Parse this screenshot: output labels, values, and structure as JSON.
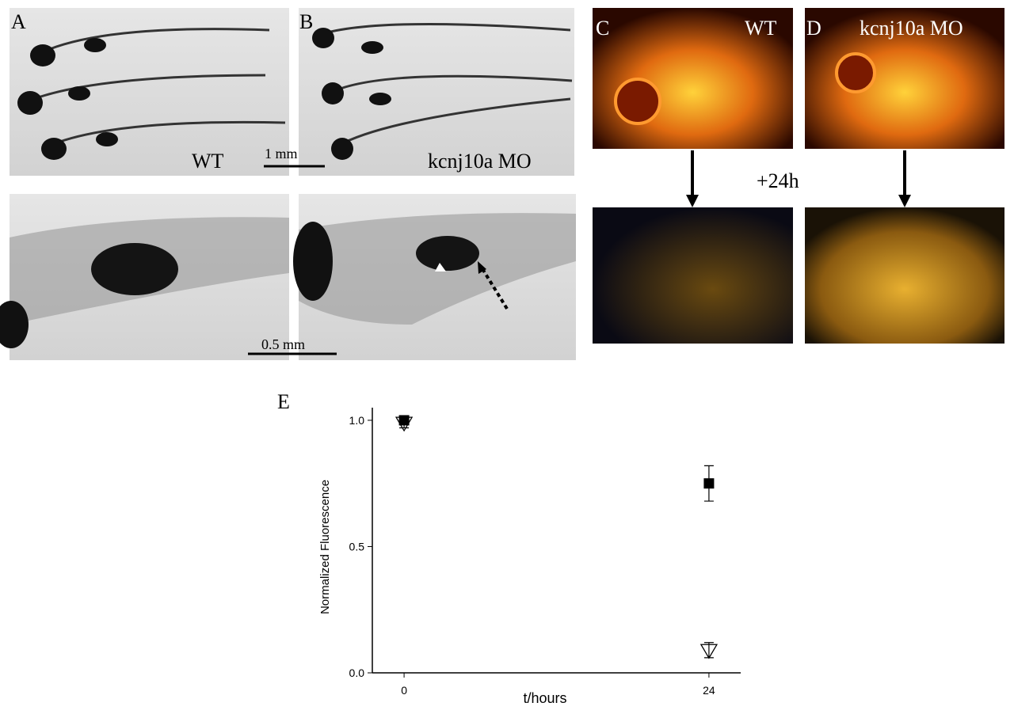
{
  "panels": {
    "a": {
      "label": "A",
      "caption": "WT"
    },
    "b": {
      "label": "B",
      "caption": "kcnj10a MO"
    },
    "scale_top": "1 mm",
    "scale_bottom": "0.5 mm",
    "c": {
      "label": "C",
      "caption": "WT"
    },
    "d": {
      "label": "D",
      "caption": "kcnj10a MO"
    },
    "interval": "+24h"
  },
  "chart_data": {
    "type": "scatter",
    "panel_label": "E",
    "x_label": "t/hours",
    "y_label": "Normalized Fluorescence",
    "x": [
      0,
      24
    ],
    "series": [
      {
        "marker": "square",
        "filled": true,
        "color": "#000000",
        "values": [
          1.0,
          0.75
        ],
        "errors": [
          0.01,
          0.07
        ]
      },
      {
        "marker": "triangle-down",
        "filled": false,
        "color": "#000000",
        "values": [
          0.99,
          0.09
        ],
        "errors": [
          0.02,
          0.03
        ]
      }
    ],
    "xlim": [
      -2.5,
      26.5
    ],
    "ylim": [
      0,
      1.05
    ],
    "xticks": [
      0,
      24
    ],
    "yticks": [
      {
        "value": 0,
        "label": "0.0"
      },
      {
        "value": 0.5,
        "label": "0.5"
      },
      {
        "value": 1,
        "label": "1.0"
      }
    ]
  }
}
